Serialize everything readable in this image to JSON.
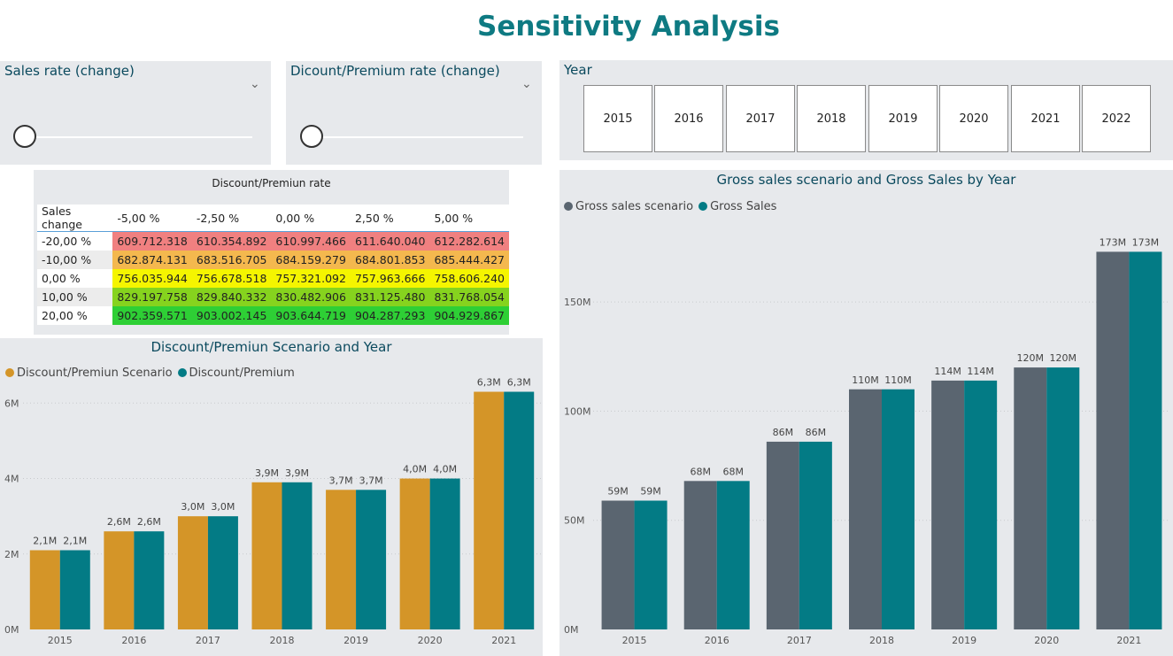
{
  "page_title": "Sensitivity Analysis",
  "slicers": {
    "sales_rate": {
      "title": "Sales rate (change)"
    },
    "discount_rate": {
      "title": "Dicount/Premium rate (change)"
    }
  },
  "year_slicer": {
    "title": "Year",
    "years": [
      "2015",
      "2016",
      "2017",
      "2018",
      "2019",
      "2020",
      "2021",
      "2022"
    ]
  },
  "matrix": {
    "title": "Discount/Premiun rate",
    "corner": "Sales change",
    "columns": [
      "-5,00 %",
      "-2,50 %",
      "0,00 %",
      "2,50 %",
      "5,00 %"
    ],
    "rows": [
      {
        "label": "-20,00 %",
        "values": [
          "609.712.318",
          "610.354.892",
          "610.997.466",
          "611.640.040",
          "612.282.614"
        ],
        "color": "#f08080"
      },
      {
        "label": "-10,00 %",
        "values": [
          "682.874.131",
          "683.516.705",
          "684.159.279",
          "684.801.853",
          "685.444.427"
        ],
        "color": "#f4b84e"
      },
      {
        "label": "0,00 %",
        "values": [
          "756.035.944",
          "756.678.518",
          "757.321.092",
          "757.963.666",
          "758.606.240"
        ],
        "color": "#f5f500"
      },
      {
        "label": "10,00 %",
        "values": [
          "829.197.758",
          "829.840.332",
          "830.482.906",
          "831.125.480",
          "831.768.054"
        ],
        "color": "#86d31e"
      },
      {
        "label": "20,00 %",
        "values": [
          "902.359.571",
          "903.002.145",
          "903.644.719",
          "904.287.293",
          "904.929.867"
        ],
        "color": "#2ecf35"
      }
    ]
  },
  "chart_data": [
    {
      "type": "bar",
      "title": "Discount/Premiun Scenario and Year",
      "categories": [
        "2015",
        "2016",
        "2017",
        "2018",
        "2019",
        "2020",
        "2021"
      ],
      "series": [
        {
          "name": "Discount/Premiun Scenario",
          "color": "#d49528",
          "values": [
            2.1,
            2.6,
            3.0,
            3.9,
            3.7,
            4.0,
            6.3
          ],
          "labels": [
            "2,1M",
            "2,6M",
            "3,0M",
            "3,9M",
            "3,7M",
            "4,0M",
            "6,3M"
          ]
        },
        {
          "name": "Discount/Premium",
          "color": "#037b85",
          "values": [
            2.1,
            2.6,
            3.0,
            3.9,
            3.7,
            4.0,
            6.3
          ],
          "labels": [
            "2,1M",
            "2,6M",
            "3,0M",
            "3,9M",
            "3,7M",
            "4,0M",
            "6,3M"
          ]
        }
      ],
      "yticks": [
        {
          "v": 0,
          "label": "0M"
        },
        {
          "v": 2,
          "label": "2M"
        },
        {
          "v": 4,
          "label": "4M"
        },
        {
          "v": 6,
          "label": "6M"
        }
      ],
      "ylim": [
        0,
        6.5
      ]
    },
    {
      "type": "bar",
      "title": "Gross sales scenario and Gross Sales by Year",
      "categories": [
        "2015",
        "2016",
        "2017",
        "2018",
        "2019",
        "2020",
        "2021"
      ],
      "series": [
        {
          "name": "Gross sales scenario",
          "color": "#5a6570",
          "values": [
            59,
            68,
            86,
            110,
            114,
            120,
            173
          ],
          "labels": [
            "59M",
            "68M",
            "86M",
            "110M",
            "114M",
            "120M",
            "173M"
          ]
        },
        {
          "name": "Gross Sales",
          "color": "#037b85",
          "values": [
            59,
            68,
            86,
            110,
            114,
            120,
            173
          ],
          "labels": [
            "59M",
            "68M",
            "86M",
            "110M",
            "114M",
            "120M",
            "173M"
          ]
        }
      ],
      "yticks": [
        {
          "v": 0,
          "label": "0M"
        },
        {
          "v": 50,
          "label": "50M"
        },
        {
          "v": 100,
          "label": "100M"
        },
        {
          "v": 150,
          "label": "150M"
        }
      ],
      "ylim": [
        0,
        176
      ]
    }
  ]
}
